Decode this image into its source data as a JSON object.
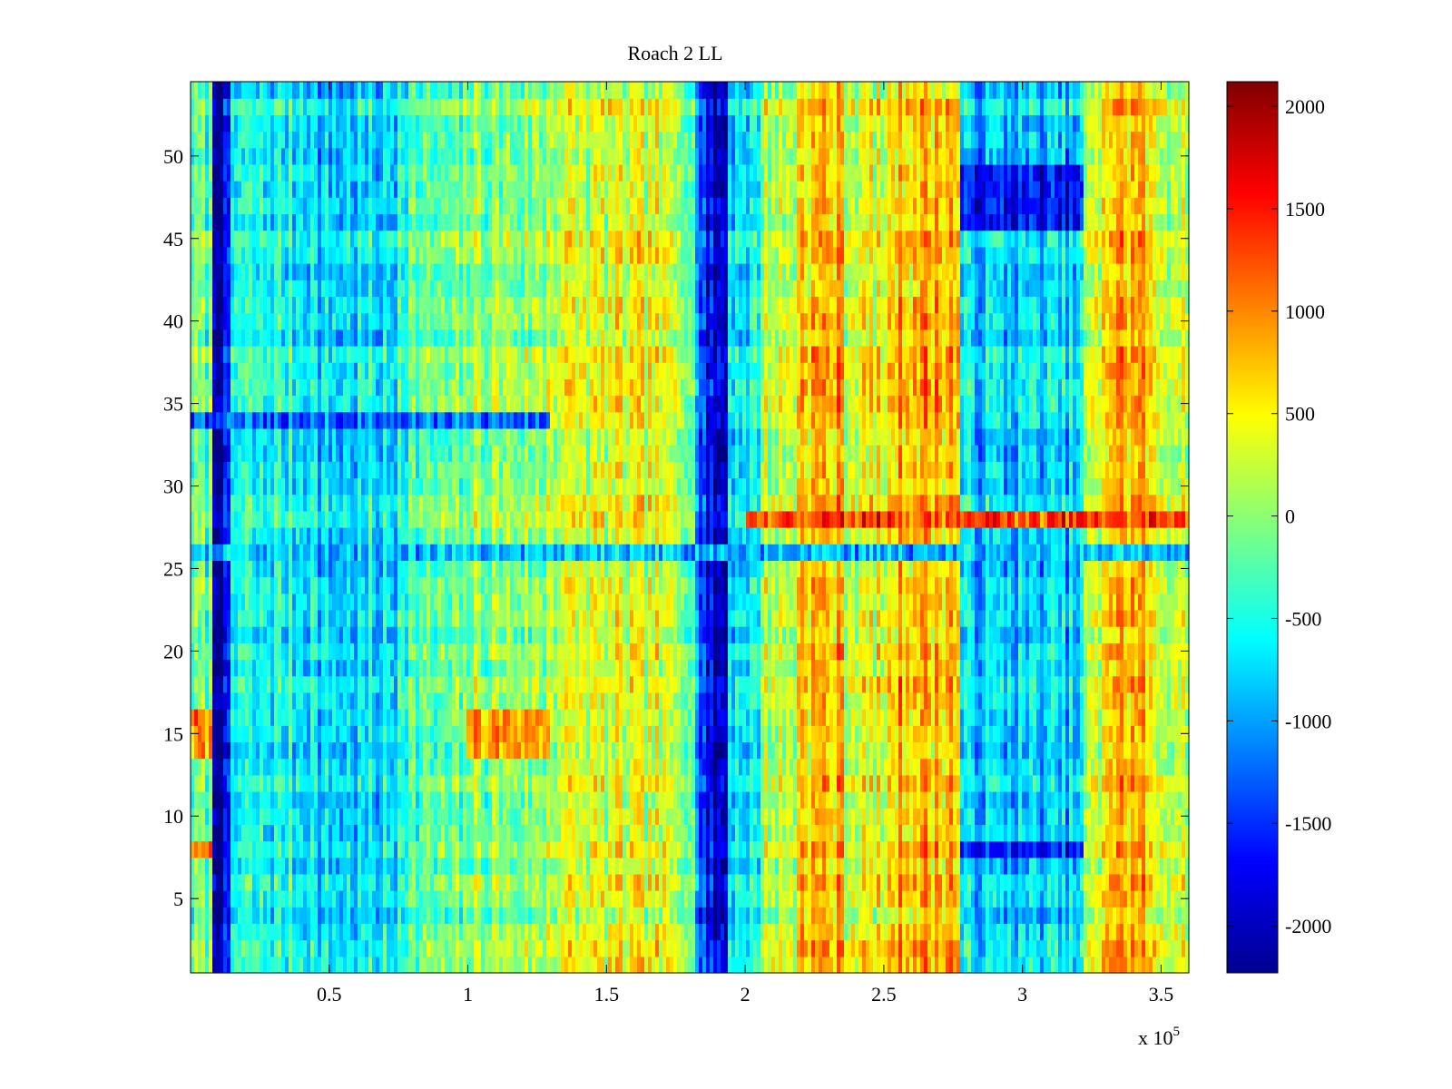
{
  "chart_data": {
    "type": "heatmap",
    "title": "Roach 2 LL",
    "xlabel": "",
    "ylabel": "",
    "x_exponent_base": "x 10",
    "x_exponent_power": "5",
    "xlim": [
      0,
      360000
    ],
    "ylim": [
      0.5,
      54.5
    ],
    "rows": 54,
    "x_ticks": [
      {
        "value": 50000,
        "label": "0.5"
      },
      {
        "value": 100000,
        "label": "1"
      },
      {
        "value": 150000,
        "label": "1.5"
      },
      {
        "value": 200000,
        "label": "2"
      },
      {
        "value": 250000,
        "label": "2.5"
      },
      {
        "value": 300000,
        "label": "3"
      },
      {
        "value": 350000,
        "label": "3.5"
      }
    ],
    "y_ticks": [
      {
        "value": 5,
        "label": "5"
      },
      {
        "value": 10,
        "label": "10"
      },
      {
        "value": 15,
        "label": "15"
      },
      {
        "value": 20,
        "label": "20"
      },
      {
        "value": 25,
        "label": "25"
      },
      {
        "value": 30,
        "label": "30"
      },
      {
        "value": 35,
        "label": "35"
      },
      {
        "value": 40,
        "label": "40"
      },
      {
        "value": 45,
        "label": "45"
      },
      {
        "value": 50,
        "label": "50"
      }
    ],
    "colorbar": {
      "colormap": "jet",
      "clim": [
        -2230,
        2120
      ],
      "ticks": [
        {
          "value": 2000,
          "label": "2000"
        },
        {
          "value": 1500,
          "label": "1500"
        },
        {
          "value": 1000,
          "label": "1000"
        },
        {
          "value": 500,
          "label": "500"
        },
        {
          "value": 0,
          "label": "0"
        },
        {
          "value": -500,
          "label": "-500"
        },
        {
          "value": -1000,
          "label": "-1000"
        },
        {
          "value": -1500,
          "label": "-1500"
        },
        {
          "value": -2000,
          "label": "-2000"
        }
      ]
    },
    "column_bands": [
      {
        "x": [
          0,
          8000
        ],
        "value": -200
      },
      {
        "x": [
          8000,
          14000
        ],
        "value": -1900
      },
      {
        "x": [
          14000,
          45000
        ],
        "value": -550
      },
      {
        "x": [
          45000,
          75000
        ],
        "value": -750
      },
      {
        "x": [
          75000,
          100000
        ],
        "value": -250
      },
      {
        "x": [
          100000,
          128000
        ],
        "value": 0
      },
      {
        "x": [
          128000,
          170000
        ],
        "value": 300
      },
      {
        "x": [
          170000,
          182000
        ],
        "value": 150
      },
      {
        "x": [
          182000,
          186000
        ],
        "value": -1200
      },
      {
        "x": [
          186000,
          194000
        ],
        "value": -1900
      },
      {
        "x": [
          194000,
          205000
        ],
        "value": -600
      },
      {
        "x": [
          205000,
          218000
        ],
        "value": 200
      },
      {
        "x": [
          218000,
          235000
        ],
        "value": 750
      },
      {
        "x": [
          235000,
          252000
        ],
        "value": 350
      },
      {
        "x": [
          252000,
          277000
        ],
        "value": 800
      },
      {
        "x": [
          277000,
          322000
        ],
        "value": -800
      },
      {
        "x": [
          322000,
          328000
        ],
        "value": 150
      },
      {
        "x": [
          328000,
          345000
        ],
        "value": 800
      },
      {
        "x": [
          345000,
          360000
        ],
        "value": 350
      }
    ],
    "row_highlights": [
      {
        "rows": [
          34,
          34
        ],
        "x": [
          0,
          130000
        ],
        "value": -1300
      },
      {
        "rows": [
          28,
          28
        ],
        "x": [
          200000,
          360000
        ],
        "value": 1300
      },
      {
        "rows": [
          26,
          26
        ],
        "x": [
          0,
          360000
        ],
        "value": -900
      },
      {
        "rows": [
          46,
          49
        ],
        "x": [
          278000,
          322000
        ],
        "value": -1700
      },
      {
        "rows": [
          8,
          8
        ],
        "x": [
          278000,
          322000
        ],
        "value": -1600
      },
      {
        "rows": [
          14,
          16
        ],
        "x": [
          100000,
          130000
        ],
        "value": 900
      },
      {
        "rows": [
          14,
          16
        ],
        "x": [
          0,
          8000
        ],
        "value": 900
      },
      {
        "rows": [
          8,
          8
        ],
        "x": [
          0,
          8000
        ],
        "value": 1000
      }
    ]
  }
}
